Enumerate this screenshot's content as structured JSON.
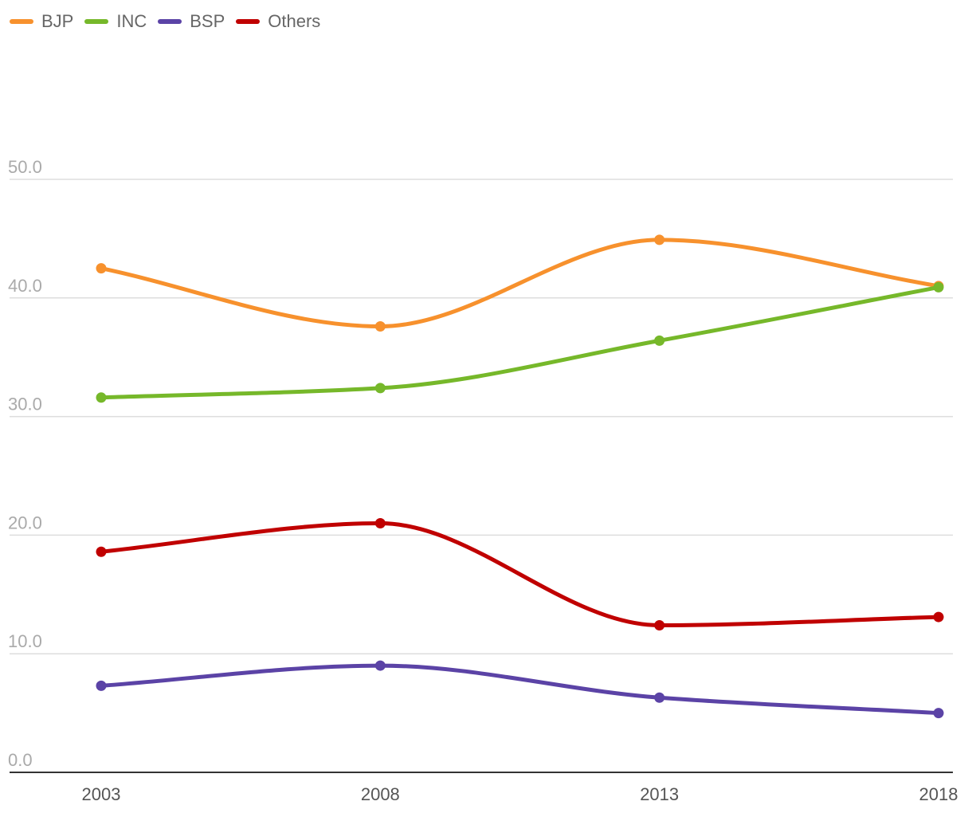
{
  "chart_data": {
    "type": "line",
    "title": "",
    "xlabel": "",
    "ylabel": "",
    "x": [
      "2003",
      "2008",
      "2013",
      "2018"
    ],
    "ylim": [
      0,
      50
    ],
    "yticks": [
      "0.0",
      "10.0",
      "20.0",
      "30.0",
      "40.0",
      "50.0"
    ],
    "grid": true,
    "legend_position": "top-left",
    "series": [
      {
        "name": "BJP",
        "color": "#f7912d",
        "values": [
          42.5,
          37.6,
          44.9,
          41.0
        ]
      },
      {
        "name": "INC",
        "color": "#76b82a",
        "values": [
          31.6,
          32.4,
          36.4,
          40.9
        ]
      },
      {
        "name": "BSP",
        "color": "#5b43a6",
        "values": [
          7.3,
          9.0,
          6.3,
          5.0
        ]
      },
      {
        "name": "Others",
        "color": "#c00000",
        "values": [
          18.6,
          21.0,
          12.4,
          13.1
        ]
      }
    ]
  },
  "colors": {
    "grid": "#dddddd",
    "axis": "#333333",
    "y_tick_text": "#aaaaaa",
    "x_tick_text": "#555555"
  }
}
